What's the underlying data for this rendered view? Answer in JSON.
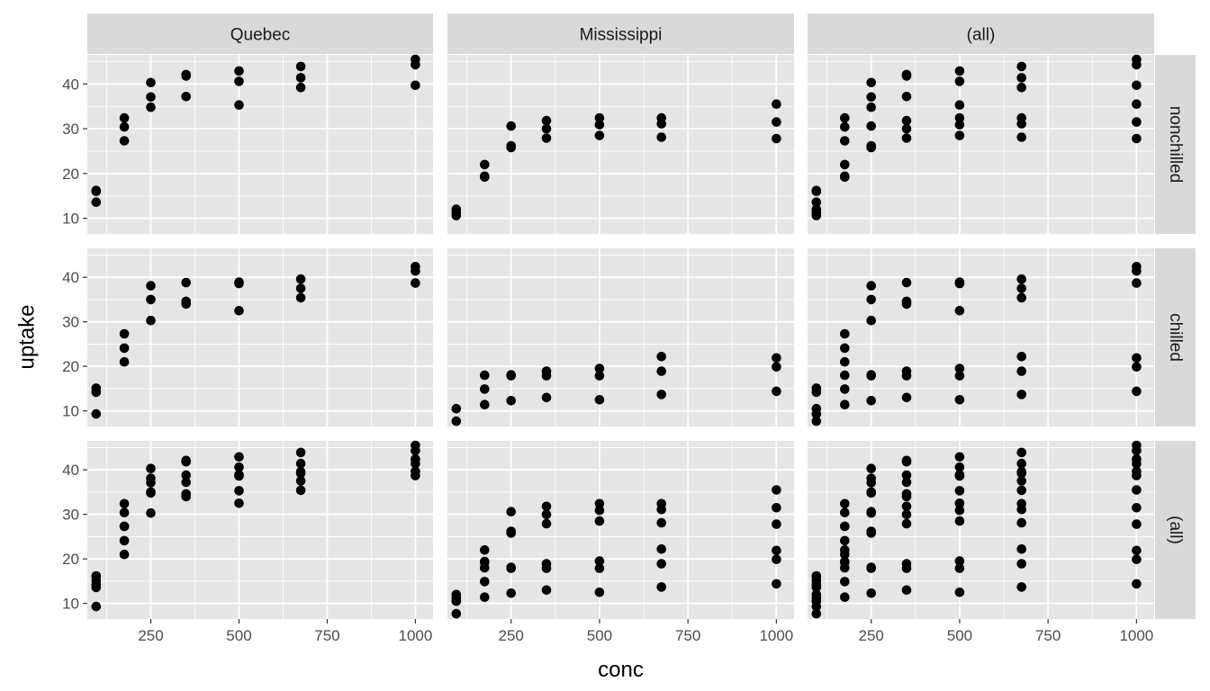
{
  "chart_data": {
    "type": "scatter",
    "facet_layout": "grid",
    "xlabel": "conc",
    "ylabel": "uptake",
    "xlim": [
      70,
      1050
    ],
    "ylim": [
      6.5,
      46.5
    ],
    "x_ticks": [
      250,
      500,
      750,
      1000
    ],
    "y_ticks": [
      10,
      20,
      30,
      40
    ],
    "grid": true,
    "column_facets": [
      "Quebec",
      "Mississippi",
      "(all)"
    ],
    "row_facets": [
      "nonchilled",
      "chilled",
      "(all)"
    ],
    "colors": {
      "panel_bg": "#e5e5e5",
      "strip_bg": "#d9d9d9",
      "grid": "#ffffff",
      "point": "#000000"
    },
    "subsets": {
      "Quebec|nonchilled": [
        [
          95,
          16.0
        ],
        [
          95,
          13.6
        ],
        [
          95,
          16.2
        ],
        [
          175,
          30.4
        ],
        [
          175,
          27.3
        ],
        [
          175,
          32.4
        ],
        [
          250,
          34.8
        ],
        [
          250,
          37.1
        ],
        [
          250,
          40.3
        ],
        [
          350,
          37.2
        ],
        [
          350,
          41.8
        ],
        [
          350,
          42.1
        ],
        [
          500,
          35.3
        ],
        [
          500,
          40.6
        ],
        [
          500,
          42.9
        ],
        [
          675,
          39.2
        ],
        [
          675,
          41.4
        ],
        [
          675,
          43.9
        ],
        [
          1000,
          39.7
        ],
        [
          1000,
          44.3
        ],
        [
          1000,
          45.5
        ]
      ],
      "Quebec|chilled": [
        [
          95,
          14.2
        ],
        [
          95,
          9.3
        ],
        [
          95,
          15.1
        ],
        [
          175,
          24.1
        ],
        [
          175,
          27.3
        ],
        [
          175,
          21.0
        ],
        [
          250,
          30.3
        ],
        [
          250,
          35.0
        ],
        [
          250,
          38.1
        ],
        [
          350,
          34.6
        ],
        [
          350,
          38.8
        ],
        [
          350,
          34.0
        ],
        [
          500,
          32.5
        ],
        [
          500,
          38.6
        ],
        [
          500,
          38.9
        ],
        [
          675,
          35.4
        ],
        [
          675,
          37.5
        ],
        [
          675,
          39.6
        ],
        [
          1000,
          38.7
        ],
        [
          1000,
          42.4
        ],
        [
          1000,
          41.4
        ]
      ],
      "Mississippi|nonchilled": [
        [
          95,
          10.6
        ],
        [
          95,
          12.0
        ],
        [
          95,
          11.3
        ],
        [
          175,
          19.2
        ],
        [
          175,
          22.0
        ],
        [
          175,
          19.4
        ],
        [
          250,
          26.2
        ],
        [
          250,
          30.6
        ],
        [
          250,
          25.8
        ],
        [
          350,
          30.0
        ],
        [
          350,
          31.8
        ],
        [
          350,
          27.9
        ],
        [
          500,
          30.9
        ],
        [
          500,
          32.4
        ],
        [
          500,
          28.5
        ],
        [
          675,
          32.4
        ],
        [
          675,
          31.1
        ],
        [
          675,
          28.1
        ],
        [
          1000,
          35.5
        ],
        [
          1000,
          31.5
        ],
        [
          1000,
          27.8
        ]
      ],
      "Mississippi|chilled": [
        [
          95,
          10.5
        ],
        [
          95,
          7.7
        ],
        [
          175,
          14.9
        ],
        [
          175,
          11.4
        ],
        [
          175,
          18.0
        ],
        [
          250,
          18.1
        ],
        [
          250,
          12.3
        ],
        [
          250,
          17.9
        ],
        [
          350,
          18.9
        ],
        [
          350,
          13.0
        ],
        [
          350,
          17.9
        ],
        [
          500,
          19.5
        ],
        [
          500,
          12.5
        ],
        [
          500,
          17.9
        ],
        [
          675,
          22.2
        ],
        [
          675,
          13.7
        ],
        [
          675,
          18.9
        ],
        [
          1000,
          21.9
        ],
        [
          1000,
          14.4
        ],
        [
          1000,
          19.9
        ]
      ]
    }
  }
}
